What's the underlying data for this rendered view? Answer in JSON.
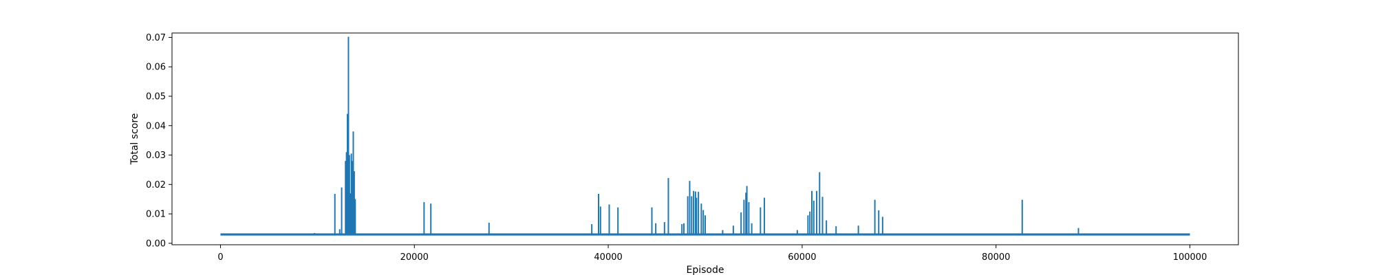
{
  "chart_data": {
    "type": "line",
    "title": "",
    "xlabel": "Episode",
    "ylabel": "Total score",
    "xlim": [
      -5000,
      105000
    ],
    "ylim": [
      -0.0005,
      0.0715
    ],
    "xticks": [
      0,
      20000,
      40000,
      60000,
      80000,
      100000
    ],
    "xtick_labels": [
      "0",
      "20000",
      "40000",
      "60000",
      "80000",
      "100000"
    ],
    "yticks": [
      0.0,
      0.01,
      0.02,
      0.03,
      0.04,
      0.05,
      0.06,
      0.07
    ],
    "ytick_labels": [
      "0.00",
      "0.01",
      "0.02",
      "0.03",
      "0.04",
      "0.05",
      "0.06",
      "0.07"
    ],
    "grid": false,
    "legend": "none",
    "series": [
      {
        "color": "#1f77b4",
        "baseline": 0.003,
        "x": [
          0,
          9700,
          11800,
          12300,
          12500,
          12900,
          13000,
          13100,
          13200,
          13300,
          13400,
          13500,
          13600,
          13700,
          13800,
          13900,
          14000,
          21000,
          21700,
          27700,
          38300,
          39000,
          39200,
          40100,
          41000,
          44500,
          44900,
          45800,
          46200,
          47600,
          47800,
          48200,
          48400,
          48600,
          48800,
          49000,
          49100,
          49300,
          49600,
          49800,
          50000,
          51800,
          52900,
          53700,
          54000,
          54200,
          54300,
          54500,
          54800,
          55700,
          56100,
          59500,
          60600,
          60800,
          61000,
          61200,
          61500,
          61800,
          62100,
          62500,
          63500,
          65800,
          67500,
          67900,
          68300,
          82700,
          88500,
          100000
        ],
        "y": [
          0.003,
          0.0035,
          0.0168,
          0.0048,
          0.019,
          0.028,
          0.031,
          0.044,
          0.0702,
          0.03,
          0.017,
          0.0305,
          0.028,
          0.038,
          0.0245,
          0.015,
          0.003,
          0.014,
          0.0135,
          0.007,
          0.0065,
          0.0168,
          0.0125,
          0.0132,
          0.0122,
          0.0122,
          0.0068,
          0.0072,
          0.0222,
          0.0065,
          0.0068,
          0.016,
          0.0212,
          0.016,
          0.0178,
          0.0176,
          0.0155,
          0.0175,
          0.0135,
          0.0113,
          0.0095,
          0.0045,
          0.006,
          0.0105,
          0.0148,
          0.0172,
          0.0195,
          0.014,
          0.0068,
          0.0122,
          0.0155,
          0.0045,
          0.0095,
          0.0108,
          0.0178,
          0.0145,
          0.0178,
          0.0242,
          0.0158,
          0.0078,
          0.0058,
          0.006,
          0.0148,
          0.0112,
          0.009,
          0.0148,
          0.0052,
          0.003
        ]
      }
    ]
  }
}
